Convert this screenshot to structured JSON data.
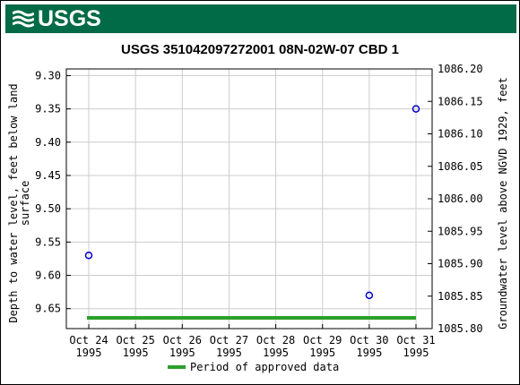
{
  "header": {
    "logo_text": "USGS"
  },
  "chart_data": {
    "type": "scatter",
    "title": "USGS 351042097272001 08N-02W-07 CBD 1",
    "ylabel_left": "Depth to water level, feet below land surface",
    "ylabel_left_lines": [
      "Depth to water level, feet below land",
      "surface"
    ],
    "ylabel_right": "Groundwater level above NGVD 1929, feet",
    "ylim_left": [
      9.68,
      9.29
    ],
    "ylim_right": [
      1085.8,
      1086.2
    ],
    "yticks_left": [
      "9.30",
      "9.35",
      "9.40",
      "9.45",
      "9.50",
      "9.55",
      "9.60",
      "9.65"
    ],
    "yticks_right": [
      "1086.20",
      "1086.15",
      "1086.10",
      "1086.05",
      "1086.00",
      "1085.95",
      "1085.90",
      "1085.85",
      "1085.80"
    ],
    "xticks": [
      {
        "line1": "Oct 24",
        "line2": "1995"
      },
      {
        "line1": "Oct 25",
        "line2": "1995"
      },
      {
        "line1": "Oct 26",
        "line2": "1995"
      },
      {
        "line1": "Oct 27",
        "line2": "1995"
      },
      {
        "line1": "Oct 28",
        "line2": "1995"
      },
      {
        "line1": "Oct 29",
        "line2": "1995"
      },
      {
        "line1": "Oct 30",
        "line2": "1995"
      },
      {
        "line1": "Oct 31",
        "line2": "1995"
      }
    ],
    "points": [
      {
        "x": "1995-10-24",
        "y": 9.57
      },
      {
        "x": "1995-10-30",
        "y": 9.63
      },
      {
        "x": "1995-10-31",
        "y": 9.35
      }
    ],
    "approved_period": {
      "start": "1995-10-24",
      "end": "1995-10-31"
    },
    "legend": {
      "label": "Period of approved data",
      "position": "bottom"
    },
    "grid": true,
    "colors": {
      "points": "#0000cc",
      "approved": "#2ca02c",
      "grid": "#cccccc",
      "banner": "#006b46"
    }
  }
}
